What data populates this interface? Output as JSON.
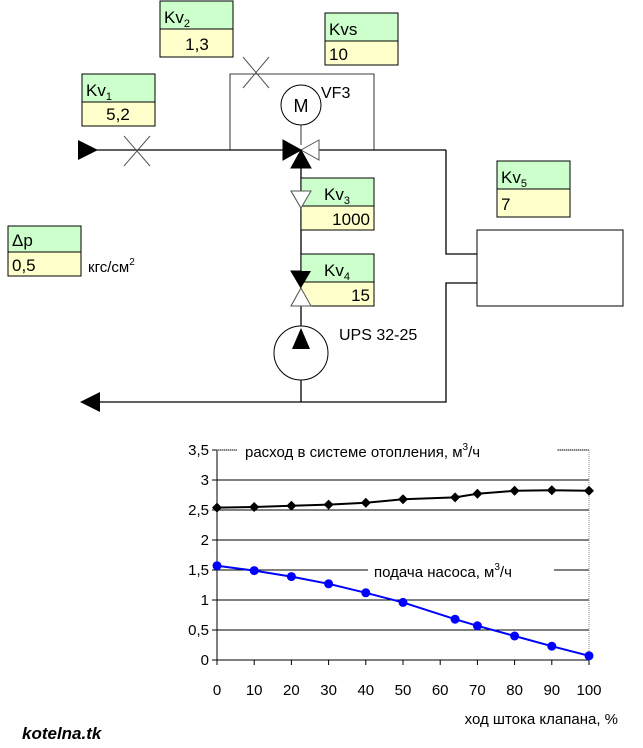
{
  "diagram": {
    "kv1": {
      "label": "Kv",
      "sub": "1",
      "value": "5,2"
    },
    "kv2": {
      "label": "Kv",
      "sub": "2",
      "value": "1,3"
    },
    "kvs": {
      "label": "Kvs",
      "value": "10"
    },
    "kv3": {
      "label": "Kv",
      "sub": "3",
      "value": "1000"
    },
    "kv4": {
      "label": "Kv",
      "sub": "4",
      "value": "15"
    },
    "kv5": {
      "label": "Kv",
      "sub": "5",
      "value": "7"
    },
    "dp": {
      "label": "Δp",
      "value": "0,5",
      "unit": "кгс/см",
      "unit_sup": "2"
    },
    "valve_name": "VF3",
    "motor_letter": "M",
    "pump_name": "UPS 32-25"
  },
  "chart_data": {
    "type": "line",
    "xlabel": "ход штока клапана, %",
    "ylabel": "",
    "xlim": [
      0,
      100
    ],
    "ylim": [
      0,
      3.5
    ],
    "x_ticks": [
      "0",
      "10",
      "20",
      "30",
      "40",
      "50",
      "60",
      "70",
      "80",
      "90",
      "100"
    ],
    "y_ticks": [
      "0",
      "0,5",
      "1",
      "1,5",
      "2",
      "2,5",
      "3",
      "3,5"
    ],
    "grid": "horizontal",
    "series": [
      {
        "name": "расход в системе отопления, м",
        "name_sup": "3",
        "name_tail": "/ч",
        "color": "#000000",
        "marker": "diamond",
        "x": [
          0,
          10,
          20,
          30,
          40,
          50,
          64,
          70,
          80,
          90,
          100
        ],
        "y": [
          2.54,
          2.55,
          2.57,
          2.59,
          2.62,
          2.68,
          2.71,
          2.77,
          2.82,
          2.83,
          2.82
        ]
      },
      {
        "name": "подача насоса, м",
        "name_sup": "3",
        "name_tail": "/ч",
        "color": "#0000ff",
        "marker": "circle",
        "x": [
          0,
          10,
          20,
          30,
          40,
          50,
          64,
          70,
          80,
          90,
          100
        ],
        "y": [
          1.57,
          1.49,
          1.39,
          1.27,
          1.12,
          0.96,
          0.68,
          0.57,
          0.4,
          0.23,
          0.07
        ]
      }
    ]
  },
  "footer": {
    "site": "kotelna.tk"
  }
}
